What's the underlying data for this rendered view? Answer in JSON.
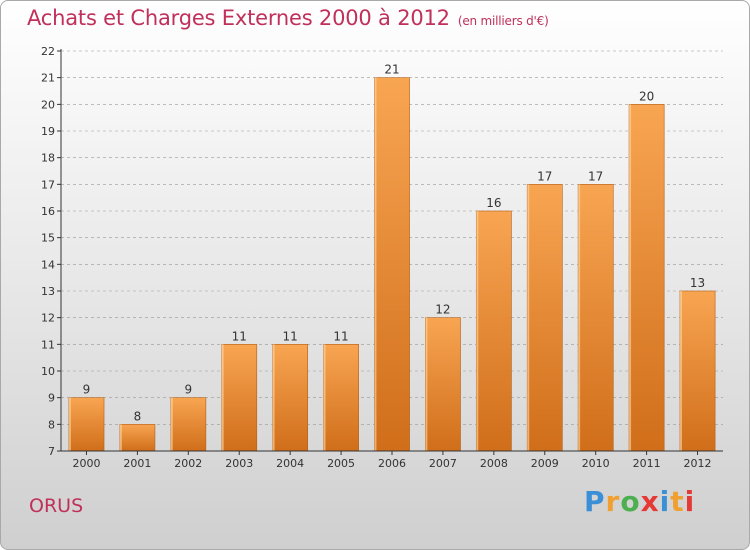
{
  "header": {
    "title": "Achats et Charges Externes 2000 à 2012",
    "unit": "(en milliers d'€)"
  },
  "footer": {
    "commune": "ORUS",
    "logo_text": "Proxiti",
    "logo_colors": [
      "#3b8fd6",
      "#f0a030",
      "#4caf50",
      "#e53935",
      "#3b8fd6",
      "#f0a030",
      "#e53935"
    ]
  },
  "colors": {
    "text_accent": "#c0305a",
    "bar_top": "#f8a552",
    "bar_bottom": "#d06e1a",
    "axis": "#333333",
    "grid": "#999999"
  },
  "chart_data": {
    "type": "bar",
    "title": "Achats et Charges Externes 2000 à 2012",
    "subtitle": "(en milliers d'€)",
    "categories": [
      "2000",
      "2001",
      "2002",
      "2003",
      "2004",
      "2005",
      "2006",
      "2007",
      "2008",
      "2009",
      "2010",
      "2011",
      "2012"
    ],
    "values": [
      9,
      8,
      9,
      11,
      11,
      11,
      21,
      12,
      16,
      17,
      17,
      20,
      13
    ],
    "data_labels": [
      "9",
      "8",
      "9",
      "11",
      "11",
      "11",
      "21",
      "12",
      "16",
      "17",
      "17",
      "20",
      "13"
    ],
    "ylim": [
      7,
      22
    ],
    "yticks": [
      7,
      8,
      9,
      10,
      11,
      12,
      13,
      14,
      15,
      16,
      17,
      18,
      19,
      20,
      21,
      22
    ],
    "grid": true,
    "legend": "none"
  }
}
